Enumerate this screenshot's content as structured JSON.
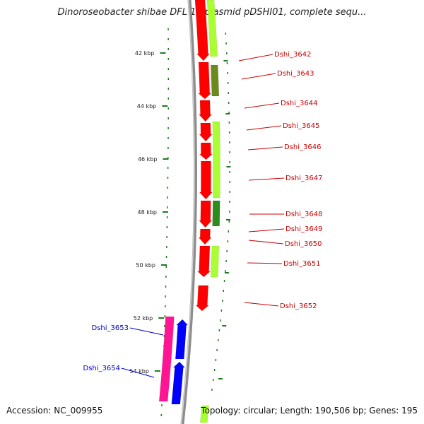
{
  "title": "Dinoroseobacter shibae DFL 12 plasmid pDSHI01, complete sequ...",
  "footer": {
    "accession": "Accession: NC_009955",
    "summary": "Topology: circular; Length: 190,506 bp; Genes: 195"
  },
  "colors": {
    "backbone": "#8c8c8c",
    "forward_gene": "#ff0000",
    "lime_feature": "#aaff33",
    "olive_feature": "#6b8a1e",
    "dark_green_feature": "#2e8b1e",
    "pink_feature": "#ff1493",
    "reverse_gene": "#0000ff",
    "red_label": "#cc0000",
    "blue_label": "#0000cc",
    "tick": "#1e7a1e"
  },
  "ticks": [
    {
      "kbp": 42,
      "label": "42 kbp"
    },
    {
      "kbp": 44,
      "label": "44 kbp"
    },
    {
      "kbp": 46,
      "label": "46 kbp"
    },
    {
      "kbp": 48,
      "label": "48 kbp"
    },
    {
      "kbp": 50,
      "label": "50 kbp"
    },
    {
      "kbp": 52,
      "label": "52 kbp"
    },
    {
      "kbp": 54,
      "label": "54 kbp"
    }
  ],
  "genes": [
    {
      "label": "Dshi_3642",
      "strand": "forward"
    },
    {
      "label": "Dshi_3643",
      "strand": "forward"
    },
    {
      "label": "Dshi_3644",
      "strand": "forward"
    },
    {
      "label": "Dshi_3645",
      "strand": "forward"
    },
    {
      "label": "Dshi_3646",
      "strand": "forward"
    },
    {
      "label": "Dshi_3647",
      "strand": "forward"
    },
    {
      "label": "Dshi_3648",
      "strand": "forward"
    },
    {
      "label": "Dshi_3649",
      "strand": "forward"
    },
    {
      "label": "Dshi_3650",
      "strand": "forward"
    },
    {
      "label": "Dshi_3651",
      "strand": "forward"
    },
    {
      "label": "Dshi_3652",
      "strand": "forward"
    },
    {
      "label": "Dshi_3653",
      "strand": "reverse"
    },
    {
      "label": "Dshi_3654",
      "strand": "reverse"
    }
  ]
}
